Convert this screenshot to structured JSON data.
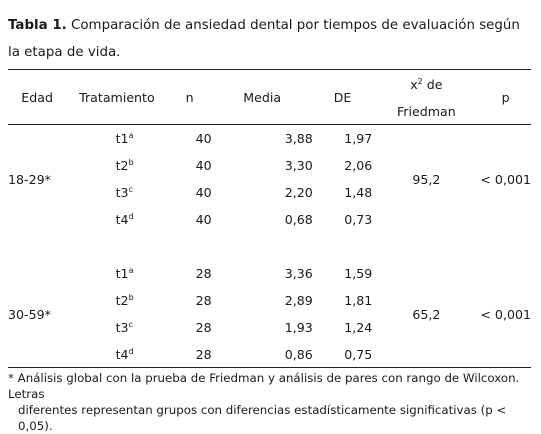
{
  "caption": {
    "label": "Tabla 1.",
    "text": "Comparación de ansiedad dental por tiempos de evaluación según la etapa de vida."
  },
  "headers": {
    "edad": "Edad",
    "tratamiento": "Tratamiento",
    "n": "n",
    "media": "Media",
    "de": "DE",
    "chi_base": "x",
    "chi_sup": "2",
    "chi_rest": " de",
    "chi_line2": "Friedman",
    "p": "p"
  },
  "groups": [
    {
      "edad": "18-29*",
      "chi": "95,2",
      "p": "< 0,001",
      "rows": [
        {
          "t": "t1",
          "sup": "a",
          "n": "40",
          "media": "3,88",
          "de": "1,97"
        },
        {
          "t": "t2",
          "sup": "b",
          "n": "40",
          "media": "3,30",
          "de": "2,06"
        },
        {
          "t": "t3",
          "sup": "c",
          "n": "40",
          "media": "2,20",
          "de": "1,48"
        },
        {
          "t": "t4",
          "sup": "d",
          "n": "40",
          "media": "0,68",
          "de": "0,73"
        }
      ]
    },
    {
      "edad": "30-59*",
      "chi": "65,2",
      "p": "< 0,001",
      "rows": [
        {
          "t": "t1",
          "sup": "a",
          "n": "28",
          "media": "3,36",
          "de": "1,59"
        },
        {
          "t": "t2",
          "sup": "b",
          "n": "28",
          "media": "2,89",
          "de": "1,81"
        },
        {
          "t": "t3",
          "sup": "c",
          "n": "28",
          "media": "1,93",
          "de": "1,24"
        },
        {
          "t": "t4",
          "sup": "d",
          "n": "28",
          "media": "0,86",
          "de": "0,75"
        }
      ]
    }
  ],
  "footnote": {
    "line1": "* Análisis global con la prueba de Friedman y análisis de pares con rango de Wilcoxon. Letras",
    "line2": "diferentes representan grupos con diferencias estadísticamente significativas (p < 0,05)."
  }
}
